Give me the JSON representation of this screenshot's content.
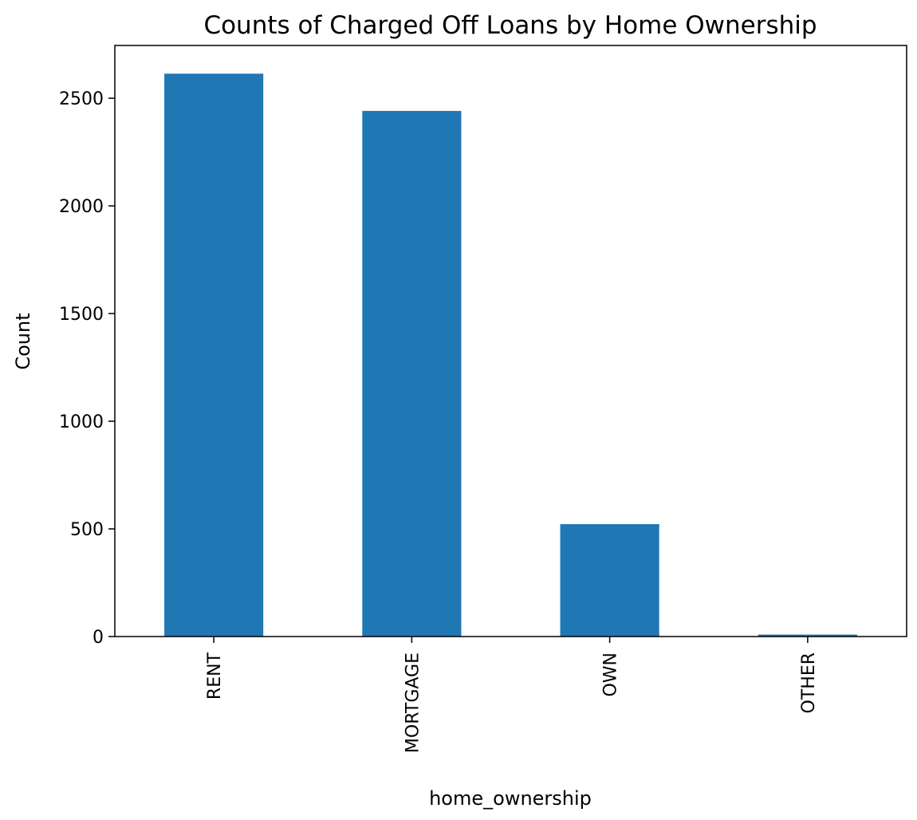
{
  "chart_data": {
    "type": "bar",
    "title": "Counts of Charged Off Loans by Home Ownership",
    "xlabel": "home_ownership",
    "ylabel": "Count",
    "categories": [
      "RENT",
      "MORTGAGE",
      "OWN",
      "OTHER"
    ],
    "values": [
      2614,
      2441,
      522,
      9
    ],
    "yticks": [
      0,
      500,
      1000,
      1500,
      2000,
      2500
    ],
    "ylim": [
      0,
      2745
    ],
    "bar_color": "#1f77b4",
    "grid": false,
    "legend": "none"
  }
}
